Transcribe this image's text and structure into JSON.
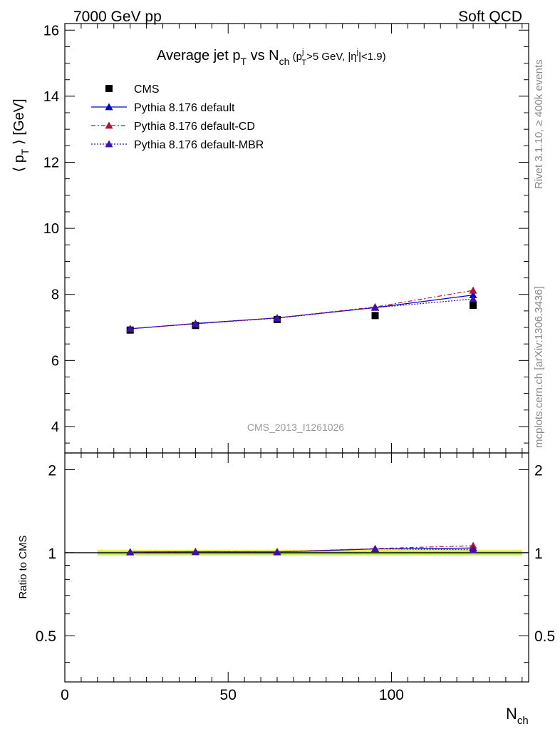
{
  "header": {
    "left": "7000 GeV pp",
    "right": "Soft QCD"
  },
  "side_labels": {
    "rivet": "Rivet 3.1.10, ≥ 400k events",
    "mcplots": "mcplots.cern.ch [arXiv:1306.3436]"
  },
  "watermark": "CMS_2013_I1261026",
  "chart_data": [
    {
      "type": "line",
      "title": {
        "main": "Average jet p",
        "main_sub": "T",
        "vs": " vs N",
        "vs_sub": "ch",
        "cut_open": " (p",
        "cut_sup": "j",
        "cut_sub": "T",
        "cut_mid": ">5 GeV, |η",
        "cut_sup2": "j",
        "cut_end": "|<1.9)"
      },
      "ylabel": {
        "open": "⟨ p",
        "sub": "T",
        "close": " ⟩ [GeV]"
      },
      "xlim": [
        0,
        142
      ],
      "ylim": [
        3.2,
        16.2
      ],
      "y_ticks": [
        4,
        6,
        8,
        10,
        12,
        14,
        16
      ],
      "x": [
        20,
        40,
        65,
        95,
        125
      ],
      "legend_position": "top-left",
      "series": [
        {
          "name": "CMS",
          "marker": "square",
          "color": "#000000",
          "values": [
            6.92,
            7.06,
            7.24,
            7.36,
            7.67
          ],
          "errors": [
            0.05,
            0.05,
            0.06,
            0.08,
            0.1
          ]
        },
        {
          "name": "Pythia 8.176 default",
          "marker": "triangle",
          "color": "#0000cc",
          "dash": "",
          "values": [
            6.96,
            7.12,
            7.29,
            7.6,
            7.98
          ]
        },
        {
          "name": "Pythia 8.176 default-CD",
          "marker": "triangle",
          "color": "#b0103a",
          "dash": "6,3,2,3",
          "values": [
            6.96,
            7.11,
            7.29,
            7.62,
            8.12
          ]
        },
        {
          "name": "Pythia 8.176 default-MBR",
          "marker": "triangle",
          "color": "#3a10b0",
          "dash": "2,2",
          "values": [
            6.96,
            7.11,
            7.28,
            7.6,
            7.86
          ]
        }
      ]
    },
    {
      "type": "line",
      "ylabel": "Ratio to CMS",
      "xlabel": {
        "main": "N",
        "sub": "ch"
      },
      "xlim": [
        0,
        142
      ],
      "ylim": [
        0.34,
        2.3
      ],
      "y_scale": "log",
      "y_ticks": [
        0.5,
        1,
        2
      ],
      "y_tick_labels": [
        "0.5",
        "1",
        "2"
      ],
      "x_ticks": [
        0,
        50,
        100
      ],
      "x_tick_labels": [
        "0",
        "50",
        "100"
      ],
      "x": [
        20,
        40,
        65,
        95,
        125
      ],
      "band": {
        "x": [
          10,
          140
        ],
        "inner": [
          0.985,
          1.015
        ],
        "outer": [
          0.975,
          1.025
        ],
        "inner_color": "#9ee86a",
        "outer_color": "#f2f25a"
      },
      "series": [
        {
          "name": "Pythia 8.176 default",
          "color": "#0000cc",
          "dash": "",
          "values": [
            1.005,
            1.008,
            1.007,
            1.032,
            1.04
          ]
        },
        {
          "name": "Pythia 8.176 default-CD",
          "color": "#b0103a",
          "dash": "6,3,2,3",
          "values": [
            1.005,
            1.007,
            1.007,
            1.035,
            1.06
          ]
        },
        {
          "name": "Pythia 8.176 default-MBR",
          "color": "#3a10b0",
          "dash": "2,2",
          "values": [
            1.005,
            1.007,
            1.005,
            1.032,
            1.025
          ]
        }
      ]
    }
  ]
}
